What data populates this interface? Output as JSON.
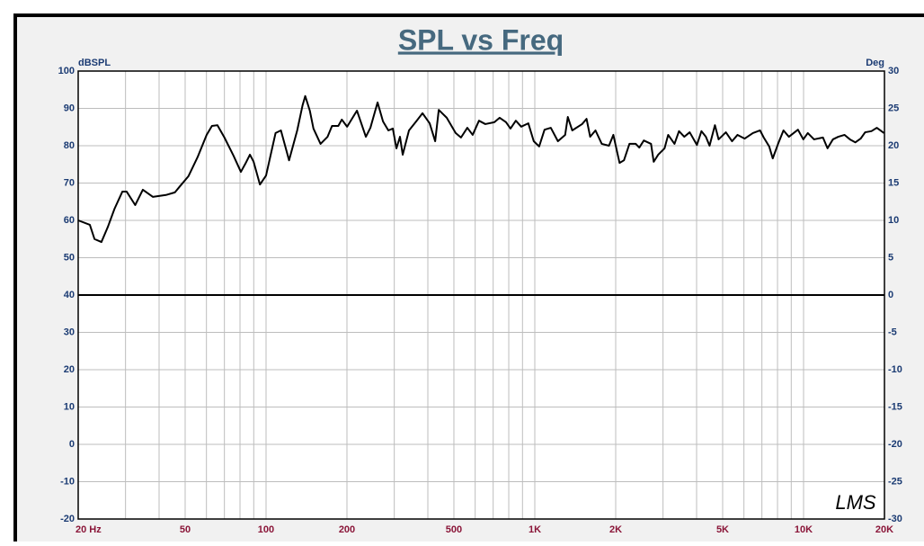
{
  "chart_data": {
    "type": "line",
    "title": "SPL vs Freq",
    "y_label": "dBSPL",
    "y2_label": "Deg",
    "annotation": "LMS",
    "xscale": "log",
    "grid": true,
    "xlim": [
      20,
      20000
    ],
    "ylim": [
      -20,
      100
    ],
    "y2lim": [
      -30,
      30
    ],
    "xticks": [
      {
        "value": 20,
        "label": "20  Hz"
      },
      50,
      100,
      200,
      500,
      {
        "value": 1000,
        "label": "1K"
      },
      {
        "value": 2000,
        "label": "2K"
      },
      {
        "value": 5000,
        "label": "5K"
      },
      {
        "value": 10000,
        "label": "10K"
      },
      {
        "value": 20000,
        "label": "20K"
      }
    ],
    "xminorticks": [
      30,
      40,
      60,
      70,
      80,
      90,
      300,
      400,
      600,
      700,
      800,
      900,
      3000,
      4000,
      6000,
      7000,
      8000,
      9000
    ],
    "yticks": [
      100,
      90,
      80,
      70,
      60,
      50,
      40,
      30,
      20,
      10,
      0,
      -10,
      -20
    ],
    "y2ticks": [
      30,
      25,
      20,
      15,
      10,
      5,
      0,
      -5,
      -10,
      -15,
      -20,
      -25,
      -30
    ],
    "x": [
      20,
      22.1,
      23,
      24.4,
      25.8,
      27.3,
      29.2,
      30.3,
      32.6,
      34.8,
      37.9,
      42.4,
      45.8,
      47.9,
      51.4,
      55.6,
      60.1,
      62.9,
      65.9,
      70,
      75.7,
      80.6,
      83.8,
      87.1,
      89.9,
      94.9,
      100,
      108.5,
      113.6,
      121.8,
      130.6,
      136.7,
      139.9,
      145.5,
      150.1,
      159.5,
      169.4,
      176,
      185.7,
      191.4,
      200.3,
      217.9,
      235.2,
      244.5,
      260,
      272.4,
      285.2,
      296.3,
      305.6,
      315,
      322.5,
      340.3,
      361.9,
      382.1,
      406.2,
      425.9,
      439.2,
      470.2,
      507.6,
      531.4,
      561,
      587.2,
      619.9,
      654.4,
      707,
      740.1,
      781.2,
      812,
      850,
      890,
      946,
      991,
      1038,
      1087,
      1147,
      1219,
      1297,
      1327,
      1378,
      1500,
      1558,
      1607,
      1682,
      1775,
      1888,
      1960,
      2067,
      2147,
      2250,
      2375,
      2448,
      2545,
      2707,
      2770,
      2879,
      3040,
      3135,
      3310,
      3440,
      3600,
      3770,
      4010,
      4170,
      4330,
      4470,
      4680,
      4830,
      5140,
      5420,
      5680,
      6040,
      6480,
      6890,
      7110,
      7450,
      7680,
      8040,
      8420,
      8820,
      9530,
      9980,
      10370,
      10940,
      11810,
      12280,
      12860,
      13460,
      14210,
      14880,
      15580,
      16310,
      16950,
      17890,
      18730,
      19930
    ],
    "series": [
      {
        "color": "#000000",
        "values": [
          60,
          58.8,
          55,
          54.2,
          58.3,
          63.1,
          67.7,
          67.7,
          64.1,
          68.2,
          66.3,
          66.8,
          67.5,
          69.2,
          71.8,
          76.9,
          82.9,
          85.3,
          85.5,
          82.2,
          77.3,
          73,
          75.2,
          77.6,
          75.7,
          69.6,
          72,
          83.4,
          84.1,
          76.1,
          84.1,
          90.8,
          93.3,
          89.4,
          84.6,
          80.5,
          82.4,
          85.3,
          85.3,
          87,
          85.1,
          89.4,
          82.4,
          84.8,
          91.6,
          86.5,
          84.1,
          84.6,
          79.3,
          82.4,
          77.6,
          84.1,
          86.5,
          88.7,
          86,
          81.2,
          89.6,
          87.5,
          83.4,
          82.2,
          84.8,
          82.9,
          86.7,
          85.8,
          86.3,
          87.5,
          86.3,
          84.6,
          86.7,
          85.1,
          86,
          81.2,
          79.8,
          84.3,
          84.8,
          81.2,
          82.9,
          87.7,
          84.1,
          85.8,
          87.2,
          82.4,
          84.1,
          80.5,
          80,
          82.9,
          75.4,
          76.1,
          80.5,
          80.5,
          79.5,
          81.4,
          80.5,
          75.7,
          77.6,
          79.3,
          82.9,
          80.5,
          83.9,
          82.4,
          83.6,
          80.2,
          83.9,
          82.4,
          80,
          85.5,
          81.7,
          83.6,
          81.2,
          82.9,
          81.9,
          83.4,
          84.1,
          82.2,
          79.8,
          76.6,
          80.5,
          84.1,
          82.4,
          84.3,
          81.7,
          83.4,
          81.7,
          82.2,
          79.3,
          81.7,
          82.4,
          82.9,
          81.7,
          80.9,
          81.9,
          83.6,
          83.9,
          84.8,
          83.4
        ]
      }
    ]
  }
}
